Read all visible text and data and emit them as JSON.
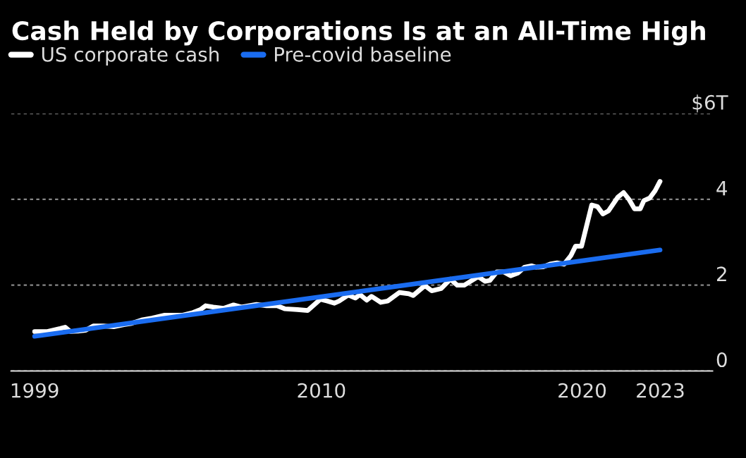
{
  "chart_data": {
    "type": "line",
    "title": "Cash Held by Corporations Is at an All-Time High",
    "series": [
      {
        "name": "US corporate cash",
        "color": "#ffffff",
        "x": [
          1999.0,
          1999.49,
          1999.98,
          2000.17,
          2000.37,
          2000.66,
          2000.96,
          2001.25,
          2001.64,
          2002.03,
          2002.42,
          2002.72,
          2003.11,
          2003.5,
          2003.99,
          2004.28,
          2004.68,
          2005.07,
          2005.36,
          2005.56,
          2005.85,
          2006.24,
          2006.63,
          2006.93,
          2007.51,
          2007.9,
          2008.3,
          2008.59,
          2009.08,
          2009.47,
          2009.96,
          2010.23,
          2010.5,
          2010.68,
          2011.03,
          2011.3,
          2011.48,
          2011.74,
          2011.92,
          2012.28,
          2012.54,
          2012.99,
          2013.35,
          2013.52,
          2013.97,
          2014.23,
          2014.59,
          2014.95,
          2015.21,
          2015.48,
          2016.01,
          2016.28,
          2016.46,
          2016.73,
          2016.99,
          2017.26,
          2017.53,
          2017.79,
          2018.06,
          2018.24,
          2018.51,
          2018.77,
          2019.04,
          2019.31,
          2019.57,
          2019.75,
          2019.98,
          2020.37,
          2020.59,
          2020.8,
          2021.01,
          2021.37,
          2021.59,
          2021.8,
          2022.01,
          2022.23,
          2022.37,
          2022.59,
          2022.8,
          2022.99
        ],
        "values": [
          0.92,
          0.92,
          0.99,
          1.02,
          0.92,
          0.93,
          0.95,
          1.05,
          1.05,
          1.03,
          1.08,
          1.11,
          1.19,
          1.23,
          1.3,
          1.3,
          1.3,
          1.36,
          1.43,
          1.52,
          1.49,
          1.46,
          1.54,
          1.49,
          1.55,
          1.52,
          1.52,
          1.45,
          1.43,
          1.41,
          1.67,
          1.63,
          1.58,
          1.63,
          1.77,
          1.7,
          1.78,
          1.65,
          1.74,
          1.6,
          1.63,
          1.83,
          1.8,
          1.76,
          1.99,
          1.87,
          1.92,
          2.14,
          2.0,
          2.0,
          2.2,
          2.09,
          2.11,
          2.31,
          2.31,
          2.22,
          2.28,
          2.42,
          2.45,
          2.42,
          2.43,
          2.49,
          2.52,
          2.49,
          2.69,
          2.91,
          2.91,
          3.87,
          3.83,
          3.66,
          3.73,
          4.05,
          4.16,
          4.0,
          3.78,
          3.78,
          3.97,
          4.03,
          4.2,
          4.42
        ]
      },
      {
        "name": "Pre-covid baseline",
        "color": "#1a6cf0",
        "x": [
          1999.0,
          2022.99
        ],
        "values": [
          0.81,
          2.82
        ]
      }
    ],
    "xlim": [
      1998.1,
      2025.0
    ],
    "xticks": [
      1999,
      2010,
      2020,
      2023
    ],
    "ylim": [
      0,
      6
    ],
    "yticks": [
      0,
      2,
      4,
      {
        "value": 6,
        "label": "$6T"
      }
    ],
    "grid": "y",
    "legend": "top left"
  }
}
